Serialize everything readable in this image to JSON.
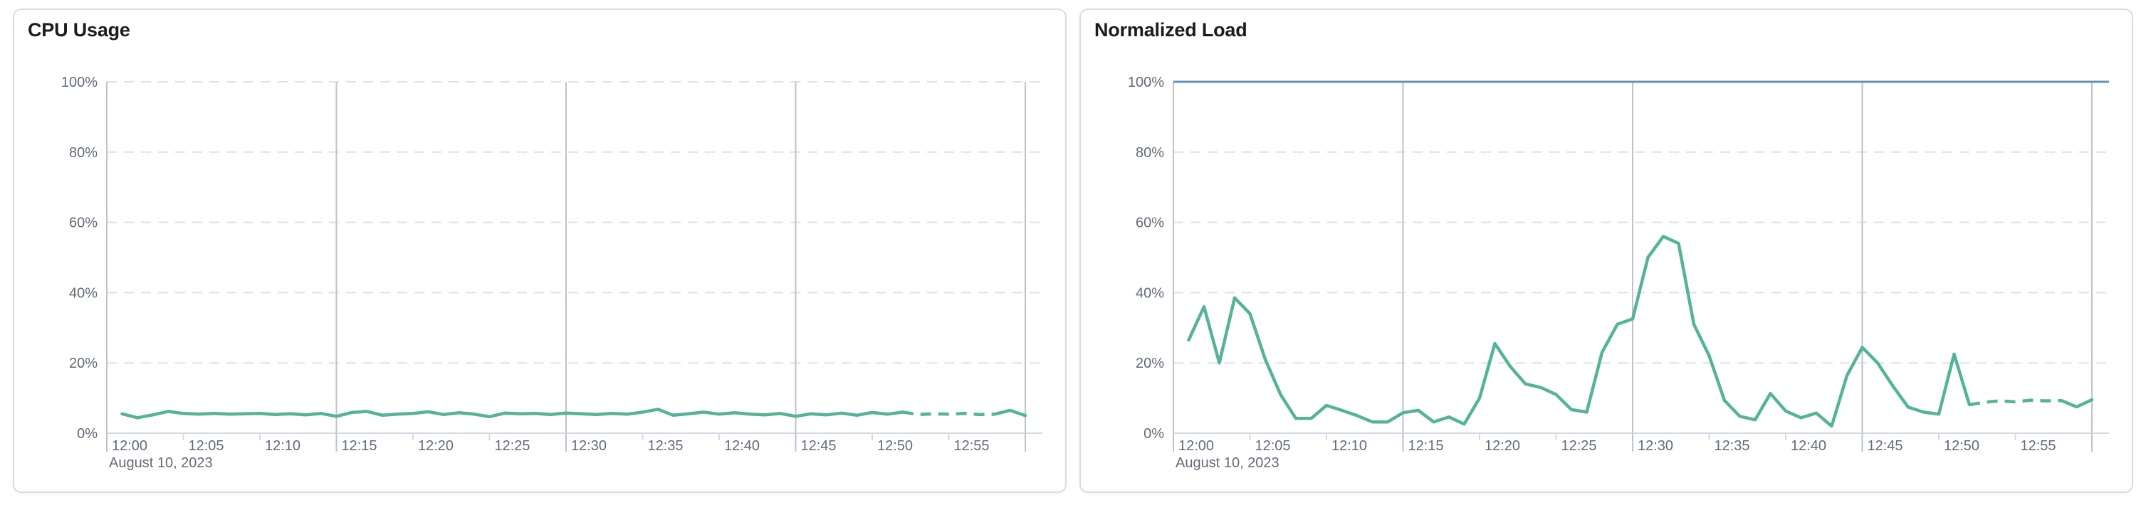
{
  "panels": [
    {
      "title": "CPU Usage"
    },
    {
      "title": "Normalized Load"
    }
  ],
  "colors": {
    "series_green": "#54b399",
    "reference_blue": "#6092c0",
    "grid_dashed": "#dbe0ea",
    "grid_major": "#bdc2cc",
    "axis_line": "#d3dae6",
    "axis_text": "#636a78",
    "title_text": "#1a1c21",
    "panel_border": "#d6dce8",
    "background": "#ffffff"
  },
  "chart_data": [
    {
      "type": "line",
      "title": "CPU Usage",
      "date_label": "August 10, 2023",
      "x_start": "12:00",
      "x_end": "13:00",
      "x_tick_labels": [
        "12:00",
        "12:05",
        "12:10",
        "12:15",
        "12:20",
        "12:25",
        "12:30",
        "12:35",
        "12:40",
        "12:45",
        "12:50",
        "12:55"
      ],
      "x_major_gridline_ticks": [
        "12:00",
        "12:15",
        "12:30",
        "12:45",
        "13:00"
      ],
      "x_sample_interval_minutes": 1,
      "x_first_sample_minute": 1,
      "ylim": [
        0,
        100
      ],
      "y_tick_labels": [
        "0%",
        "20%",
        "40%",
        "60%",
        "80%",
        "100%"
      ],
      "grid": {
        "horizontal_dashed_every_percent": 20,
        "vertical_major_every_minutes": 15
      },
      "legend": "none",
      "series": [
        {
          "name": "CPU Usage",
          "color": "#54b399",
          "dashed_segment_minutes": [
            52,
            58
          ],
          "values": [
            5.5,
            4.4,
            5.2,
            6.2,
            5.6,
            5.4,
            5.6,
            5.4,
            5.5,
            5.6,
            5.3,
            5.5,
            5.2,
            5.6,
            4.8,
            5.9,
            6.2,
            5.1,
            5.4,
            5.6,
            6.1,
            5.3,
            5.8,
            5.4,
            4.7,
            5.7,
            5.5,
            5.6,
            5.3,
            5.7,
            5.5,
            5.3,
            5.6,
            5.4,
            6.0,
            6.8,
            5.1,
            5.5,
            6.0,
            5.4,
            5.8,
            5.4,
            5.2,
            5.6,
            4.8,
            5.5,
            5.2,
            5.7,
            5.1,
            5.9,
            5.4,
            6.0,
            5.3,
            5.5,
            5.4,
            5.6,
            5.3,
            5.4,
            6.5,
            5.0
          ]
        }
      ]
    },
    {
      "type": "line",
      "title": "Normalized Load",
      "date_label": "August 10, 2023",
      "x_start": "12:00",
      "x_end": "13:00",
      "x_tick_labels": [
        "12:00",
        "12:05",
        "12:10",
        "12:15",
        "12:20",
        "12:25",
        "12:30",
        "12:35",
        "12:40",
        "12:45",
        "12:50",
        "12:55"
      ],
      "x_major_gridline_ticks": [
        "12:00",
        "12:15",
        "12:30",
        "12:45",
        "13:00"
      ],
      "x_sample_interval_minutes": 1,
      "x_first_sample_minute": 1,
      "ylim": [
        0,
        100
      ],
      "y_tick_labels": [
        "0%",
        "20%",
        "40%",
        "60%",
        "80%",
        "100%"
      ],
      "grid": {
        "horizontal_dashed_every_percent": 20,
        "vertical_major_every_minutes": 15
      },
      "legend": "none",
      "reference_line": {
        "value": 100,
        "color": "#6092c0"
      },
      "series": [
        {
          "name": "Normalized Load",
          "color": "#54b399",
          "dashed_segment_minutes": [
            52,
            58
          ],
          "values": [
            26.5,
            36,
            20,
            38.5,
            34,
            21,
            11,
            4.2,
            4.2,
            7.9,
            6.5,
            5,
            3.2,
            3.2,
            5.8,
            6.5,
            3.2,
            4.6,
            2.6,
            10,
            25.5,
            19,
            14,
            13,
            11,
            6.7,
            6,
            23,
            31,
            32.5,
            50,
            56,
            54,
            31,
            22,
            9.3,
            4.8,
            3.8,
            11.3,
            6.3,
            4.4,
            5.7,
            2,
            16.4,
            24.4,
            20,
            13.4,
            7.4,
            6,
            5.4,
            22.5,
            8.1,
            8.8,
            9.2,
            8.9,
            9.4,
            9.2,
            9.3,
            7.5,
            9.5
          ]
        }
      ]
    }
  ]
}
